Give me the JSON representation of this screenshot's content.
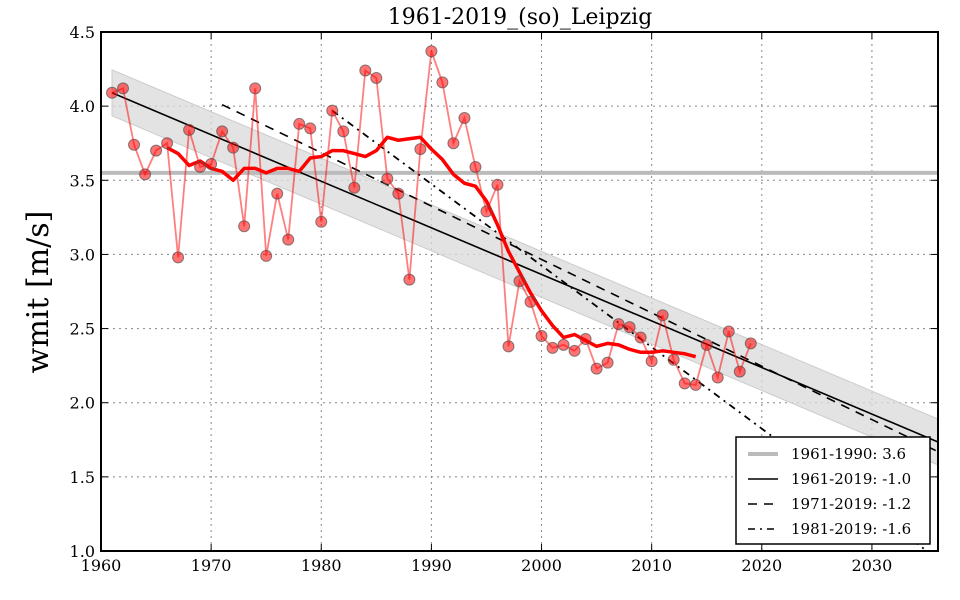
{
  "chart_data": {
    "type": "line",
    "title": "1961-2019_(so)_Leipzig",
    "xlabel": "",
    "ylabel": "wmit [m/s]",
    "xlim": [
      1960,
      2036
    ],
    "ylim": [
      1.0,
      4.5
    ],
    "grid": true,
    "xticks": [
      1960,
      1970,
      1980,
      1990,
      2000,
      2010,
      2020,
      2030
    ],
    "yticks": [
      1.0,
      1.5,
      2.0,
      2.5,
      3.0,
      3.5,
      4.0,
      4.5
    ],
    "ytick_labels": [
      "1.0",
      "1.5",
      "2.0",
      "2.5",
      "3.0",
      "3.5",
      "4.0",
      "4.5"
    ],
    "legend_position": "lower-right",
    "series": [
      {
        "name": "annual",
        "kind": "points",
        "color": "#ff0000",
        "x": [
          1961,
          1962,
          1963,
          1964,
          1965,
          1966,
          1967,
          1968,
          1969,
          1970,
          1971,
          1972,
          1973,
          1974,
          1975,
          1976,
          1977,
          1978,
          1979,
          1980,
          1981,
          1982,
          1983,
          1984,
          1985,
          1986,
          1987,
          1988,
          1989,
          1990,
          1991,
          1992,
          1993,
          1994,
          1995,
          1996,
          1997,
          1998,
          1999,
          2000,
          2001,
          2002,
          2003,
          2004,
          2005,
          2006,
          2007,
          2008,
          2009,
          2010,
          2011,
          2012,
          2013,
          2014,
          2015,
          2016,
          2017,
          2018,
          2019
        ],
        "y": [
          4.09,
          4.12,
          3.74,
          3.54,
          3.7,
          3.75,
          2.98,
          3.84,
          3.59,
          3.61,
          3.83,
          3.72,
          3.19,
          4.12,
          2.99,
          3.41,
          3.1,
          3.88,
          3.85,
          3.22,
          3.97,
          3.83,
          3.45,
          4.24,
          4.19,
          3.51,
          3.41,
          2.83,
          3.71,
          4.37,
          4.16,
          3.75,
          3.92,
          3.59,
          3.29,
          3.47,
          2.38,
          2.82,
          2.68,
          2.45,
          2.37,
          2.39,
          2.35,
          2.43,
          2.23,
          2.27,
          2.53,
          2.51,
          2.44,
          2.28,
          2.59,
          2.29,
          2.13,
          2.12,
          2.39,
          2.17,
          2.48,
          2.21,
          2.4
        ]
      },
      {
        "name": "moving-average",
        "kind": "smooth",
        "color": "#ff0000",
        "x": [
          1966,
          1967,
          1968,
          1969,
          1970,
          1971,
          1972,
          1973,
          1974,
          1975,
          1976,
          1977,
          1978,
          1979,
          1980,
          1981,
          1982,
          1983,
          1984,
          1985,
          1986,
          1987,
          1988,
          1989,
          1990,
          1991,
          1992,
          1993,
          1994,
          1995,
          1996,
          1997,
          1998,
          1999,
          2000,
          2001,
          2002,
          2003,
          2004,
          2005,
          2006,
          2007,
          2008,
          2009,
          2010,
          2011,
          2012,
          2013,
          2014
        ],
        "y": [
          3.72,
          3.68,
          3.6,
          3.63,
          3.58,
          3.56,
          3.5,
          3.58,
          3.58,
          3.55,
          3.58,
          3.58,
          3.56,
          3.65,
          3.66,
          3.7,
          3.7,
          3.68,
          3.66,
          3.7,
          3.79,
          3.77,
          3.78,
          3.79,
          3.71,
          3.64,
          3.54,
          3.48,
          3.46,
          3.36,
          3.2,
          3.02,
          2.88,
          2.74,
          2.62,
          2.52,
          2.44,
          2.46,
          2.42,
          2.38,
          2.4,
          2.39,
          2.36,
          2.34,
          2.34,
          2.35,
          2.34,
          2.33,
          2.31
        ]
      },
      {
        "name": "1961-1990: 3.6",
        "kind": "hline",
        "color": "#bbbbbb",
        "value": 3.55,
        "x_range": [
          1960,
          2036
        ]
      },
      {
        "name": "1961-2019: -1.0",
        "kind": "trend",
        "style": "solid",
        "color": "#000000",
        "x_range": [
          1961,
          2036
        ],
        "y_start": 4.09,
        "slope_per_decade": -0.314,
        "band_halfwidth": 0.155
      },
      {
        "name": "1971-2019: -1.2",
        "kind": "trend",
        "style": "dashed",
        "color": "#000000",
        "x_range": [
          1971,
          2036
        ],
        "y_start": 4.01,
        "slope_per_decade": -0.36
      },
      {
        "name": "1981-2019: -1.6",
        "kind": "trend",
        "style": "dashdot",
        "color": "#000000",
        "x_range": [
          1981,
          2036
        ],
        "y_start": 3.97,
        "slope_per_decade": -0.55
      }
    ],
    "legend": [
      {
        "label": "1961-1990: 3.6",
        "style": "gray"
      },
      {
        "label": "1961-2019: -1.0",
        "style": "solid"
      },
      {
        "label": "1971-2019: -1.2",
        "style": "dashed"
      },
      {
        "label": "1981-2019: -1.6",
        "style": "dashdot"
      }
    ]
  }
}
